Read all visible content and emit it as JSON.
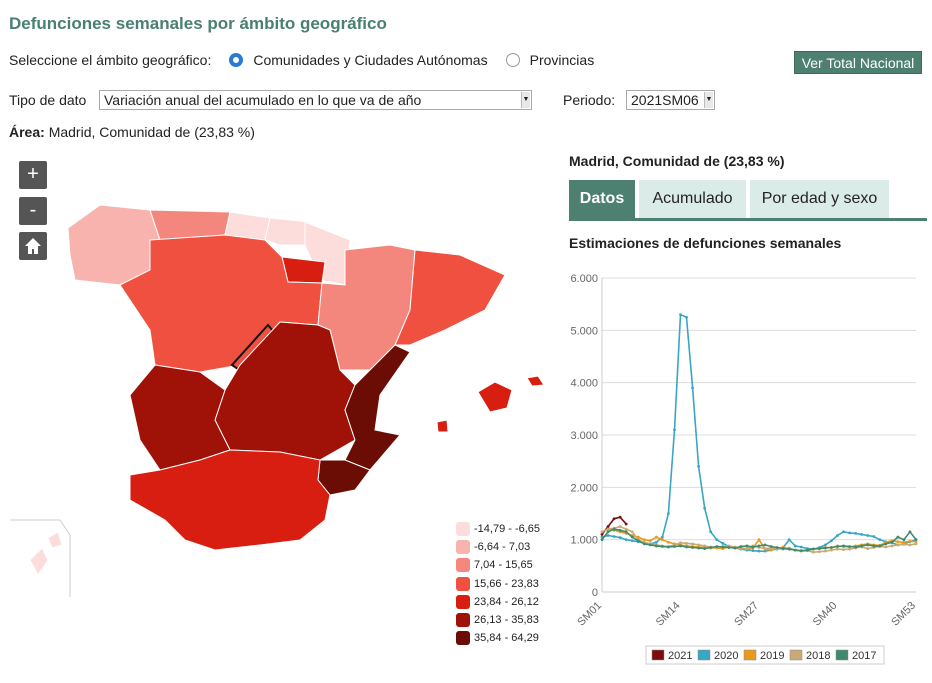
{
  "page": {
    "title": "Defunciones semanales por ámbito geográfico"
  },
  "scope": {
    "label": "Seleccione el ámbito geográfico:",
    "options": [
      {
        "label": "Comunidades y Ciudades Autónomas",
        "selected": true
      },
      {
        "label": "Provincias",
        "selected": false
      }
    ],
    "total_button": "Ver Total Nacional"
  },
  "filters": {
    "tipo_label": "Tipo de dato",
    "tipo_value": "Variación anual del acumulado en lo que va de año",
    "periodo_label": "Periodo:",
    "periodo_value": "2021SM06"
  },
  "area": {
    "label": "Área:",
    "value": "Madrid, Comunidad de (23,83 %)"
  },
  "map": {
    "controls": [
      {
        "name": "zoom-in",
        "symbol": "+"
      },
      {
        "name": "zoom-out",
        "symbol": "-"
      },
      {
        "name": "home",
        "icon": "home-icon"
      }
    ],
    "legend": [
      {
        "label": "-14,79 - -6,65",
        "color": "#fddcdc"
      },
      {
        "label": "-6,64  -  7,03",
        "color": "#f9b3ae"
      },
      {
        "label": "7,04  -  15,65",
        "color": "#f4877d"
      },
      {
        "label": "15,66 - 23,83",
        "color": "#f05040"
      },
      {
        "label": "23,84 - 26,12",
        "color": "#d81e10"
      },
      {
        "label": "26,13 - 35,83",
        "color": "#a01208"
      },
      {
        "label": "35,84 - 64,29",
        "color": "#6b0c05"
      }
    ]
  },
  "panel": {
    "title": "Madrid, Comunidad de (23,83 %)",
    "tabs": [
      {
        "label": "Datos",
        "active": true
      },
      {
        "label": "Acumulado",
        "active": false
      },
      {
        "label": "Por edad y sexo",
        "active": false
      }
    ]
  },
  "chart_data": {
    "type": "line",
    "title": "Estimaciones de defunciones semanales",
    "xlabel": "",
    "ylabel": "",
    "ylim": [
      0,
      6000
    ],
    "yticks": [
      "0",
      "1.000",
      "2.000",
      "3.000",
      "4.000",
      "5.000",
      "6.000"
    ],
    "xticks": [
      {
        "week": 1,
        "label": "SM01"
      },
      {
        "week": 14,
        "label": "SM14"
      },
      {
        "week": 27,
        "label": "SM27"
      },
      {
        "week": 40,
        "label": "SM40"
      },
      {
        "week": 53,
        "label": "SM53"
      }
    ],
    "grid": true,
    "legend_position": "bottom",
    "series": [
      {
        "name": "2021",
        "color": "#7a0e0e",
        "values": [
          1100,
          1250,
          1400,
          1430,
          1300
        ]
      },
      {
        "name": "2020",
        "color": "#3aa6c4",
        "values": [
          1050,
          1080,
          1060,
          1040,
          1000,
          980,
          960,
          940,
          920,
          950,
          1050,
          1500,
          3100,
          5300,
          5250,
          3900,
          2400,
          1600,
          1150,
          1000,
          930,
          870,
          840,
          820,
          800,
          790,
          780,
          780,
          800,
          820,
          850,
          1000,
          880,
          860,
          830,
          820,
          850,
          900,
          980,
          1080,
          1150,
          1130,
          1120,
          1100,
          1080,
          1060,
          1000,
          960,
          940,
          900,
          920,
          960,
          1000
        ]
      },
      {
        "name": "2019",
        "color": "#e89a1e",
        "values": [
          1150,
          1200,
          1180,
          1150,
          1120,
          1080,
          1050,
          1000,
          980,
          1050,
          1000,
          950,
          920,
          900,
          880,
          870,
          860,
          850,
          840,
          840,
          830,
          860,
          850,
          830,
          820,
          840,
          1000,
          820,
          800,
          830,
          860,
          820,
          800,
          780,
          800,
          820,
          840,
          850,
          850,
          880,
          870,
          860,
          880,
          900,
          920,
          900,
          890,
          950,
          980,
          960,
          950,
          970,
          960
        ]
      },
      {
        "name": "2018",
        "color": "#c9aa76",
        "values": [
          1150,
          1200,
          1220,
          1250,
          1200,
          1150,
          1000,
          950,
          920,
          900,
          880,
          870,
          900,
          940,
          930,
          920,
          900,
          880,
          860,
          850,
          870,
          880,
          860,
          840,
          830,
          880,
          850,
          830,
          840,
          830,
          820,
          840,
          800,
          780,
          790,
          760,
          770,
          780,
          800,
          820,
          810,
          820,
          840,
          860,
          830,
          850,
          870,
          860,
          880,
          900,
          910,
          900,
          920
        ]
      },
      {
        "name": "2017",
        "color": "#3f8a6a",
        "values": [
          1000,
          1150,
          1200,
          1180,
          1150,
          1050,
          980,
          920,
          900,
          880,
          870,
          860,
          870,
          880,
          860,
          850,
          840,
          830,
          850,
          870,
          860,
          850,
          840,
          870,
          880,
          860,
          880,
          900,
          870,
          850,
          830,
          820,
          800,
          790,
          800,
          820,
          830,
          840,
          850,
          870,
          880,
          870,
          860,
          880,
          900,
          880,
          880,
          920,
          950,
          1050,
          1000,
          1150,
          1000
        ]
      }
    ]
  }
}
